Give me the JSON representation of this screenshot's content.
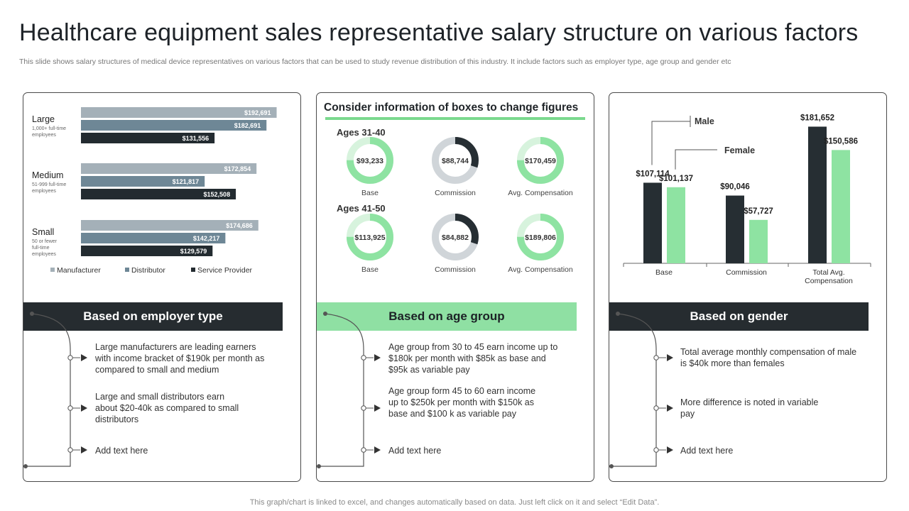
{
  "header": {
    "title": "Healthcare equipment sales representative salary structure on various factors",
    "subtitle": "This slide shows salary structures of medical device representatives on various factors that can be used to study revenue distribution of this industry. It include factors such as employer type,  age group and gender etc"
  },
  "footer": {
    "note": "This graph/chart is linked to excel,  and changes automatically based on data. Just left click on it and select “Edit Data”."
  },
  "colors": {
    "manufacturer": "#a4b0b8",
    "distributor": "#6e8796",
    "service_provider": "#232b30",
    "male": "#262e33",
    "female": "#8ee3a2",
    "donut_track_green": "#d7f3dd",
    "donut_track_gray": "#d0d5d9"
  },
  "panel1": {
    "header": "Based on employer type",
    "bullets": [
      "Large manufacturers  are leading earners with income bracket of $190k per month as compared to small and medium",
      "Large and small distributors earn about $20-40k as compared to small distributors",
      "Add text here"
    ]
  },
  "panel2": {
    "heading": "Consider information of boxes to change figures",
    "groups": [
      {
        "label": "Ages 31-40",
        "donuts": [
          {
            "value": "$93,233",
            "label": "Base",
            "share": 0.75,
            "style": "green"
          },
          {
            "value": "$88,744",
            "label": "Commission",
            "share": 0.3,
            "style": "gray"
          },
          {
            "value": "$170,459",
            "label": "Avg. Compensation",
            "share": 0.75,
            "style": "green"
          }
        ]
      },
      {
        "label": "Ages 41-50",
        "donuts": [
          {
            "value": "$113,925",
            "label": "Base",
            "share": 0.75,
            "style": "green"
          },
          {
            "value": "$84,882",
            "label": "Commission",
            "share": 0.3,
            "style": "gray"
          },
          {
            "value": "$189,806",
            "label": "Avg. Compensation",
            "share": 0.75,
            "style": "green"
          }
        ]
      }
    ],
    "header": "Based on age group",
    "bullets": [
      "Age group from 30 to 45 earn income up to $180k per month with $85k as base and $95k as variable  pay",
      "Age group form 45 to 60 earn income up to $250k per month with $150k as base and $100 k as variable  pay",
      "Add text here"
    ]
  },
  "panel3": {
    "header": "Based on gender",
    "bullets": [
      "Total average  monthly compensation of male is $40k more than females",
      "More difference  is noted in variable  pay",
      "Add text here"
    ]
  },
  "chart_data": [
    {
      "type": "bar",
      "orientation": "horizontal",
      "categories": [
        "Large",
        "Medium",
        "Small"
      ],
      "category_subtitles": [
        "1,000+  full-time employees",
        "51-999  full-time employees",
        "50 or fewer  full-time employees"
      ],
      "series": [
        {
          "name": "Manufacturer",
          "values": [
            192691,
            172854,
            174686
          ],
          "labels": [
            "$192,691",
            "$172,854",
            "$174,686"
          ]
        },
        {
          "name": "Distributor",
          "values": [
            182691,
            121817,
            142217
          ],
          "labels": [
            "$182,691",
            "$121,817",
            "$142,217"
          ]
        },
        {
          "name": "Service Provider",
          "values": [
            131556,
            152508,
            129579
          ],
          "labels": [
            "$131,556",
            "$152,508",
            "$129,579"
          ]
        }
      ],
      "xlim": [
        0,
        200000
      ],
      "legend": "bottom"
    },
    {
      "type": "bar",
      "categories": [
        "Base",
        "Commission",
        "Total Avg. Compensation"
      ],
      "series": [
        {
          "name": "Male",
          "values": [
            107114,
            90046,
            181652
          ],
          "labels": [
            "$107,114",
            "$90,046",
            "$181,652"
          ]
        },
        {
          "name": "Female",
          "values": [
            101137,
            57727,
            150586
          ],
          "labels": [
            "$101,137",
            "$57,727",
            "$150,586"
          ]
        }
      ],
      "ylim": [
        0,
        200000
      ]
    }
  ]
}
